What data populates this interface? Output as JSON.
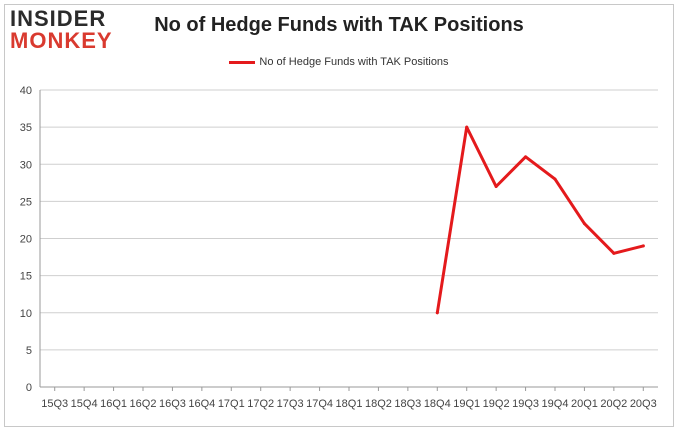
{
  "logo": {
    "line1": "INSIDER",
    "line2": "MONKEY"
  },
  "chart_data": {
    "type": "line",
    "title": "No of Hedge Funds with TAK Positions",
    "xlabel": "",
    "ylabel": "",
    "ylim": [
      0,
      40
    ],
    "yticks": [
      0,
      5,
      10,
      15,
      20,
      25,
      30,
      35,
      40
    ],
    "grid": true,
    "legend_position": "top-center",
    "categories": [
      "15Q3",
      "15Q4",
      "16Q1",
      "16Q2",
      "16Q3",
      "16Q4",
      "17Q1",
      "17Q2",
      "17Q3",
      "17Q4",
      "18Q1",
      "18Q2",
      "18Q3",
      "18Q4",
      "19Q1",
      "19Q2",
      "19Q3",
      "19Q4",
      "20Q1",
      "20Q2",
      "20Q3"
    ],
    "series": [
      {
        "name": "No of Hedge Funds with TAK Positions",
        "color": "#e41a1c",
        "values": [
          null,
          null,
          null,
          null,
          null,
          null,
          null,
          null,
          null,
          null,
          null,
          null,
          null,
          10,
          35,
          27,
          31,
          28,
          22,
          18,
          19
        ]
      }
    ]
  }
}
